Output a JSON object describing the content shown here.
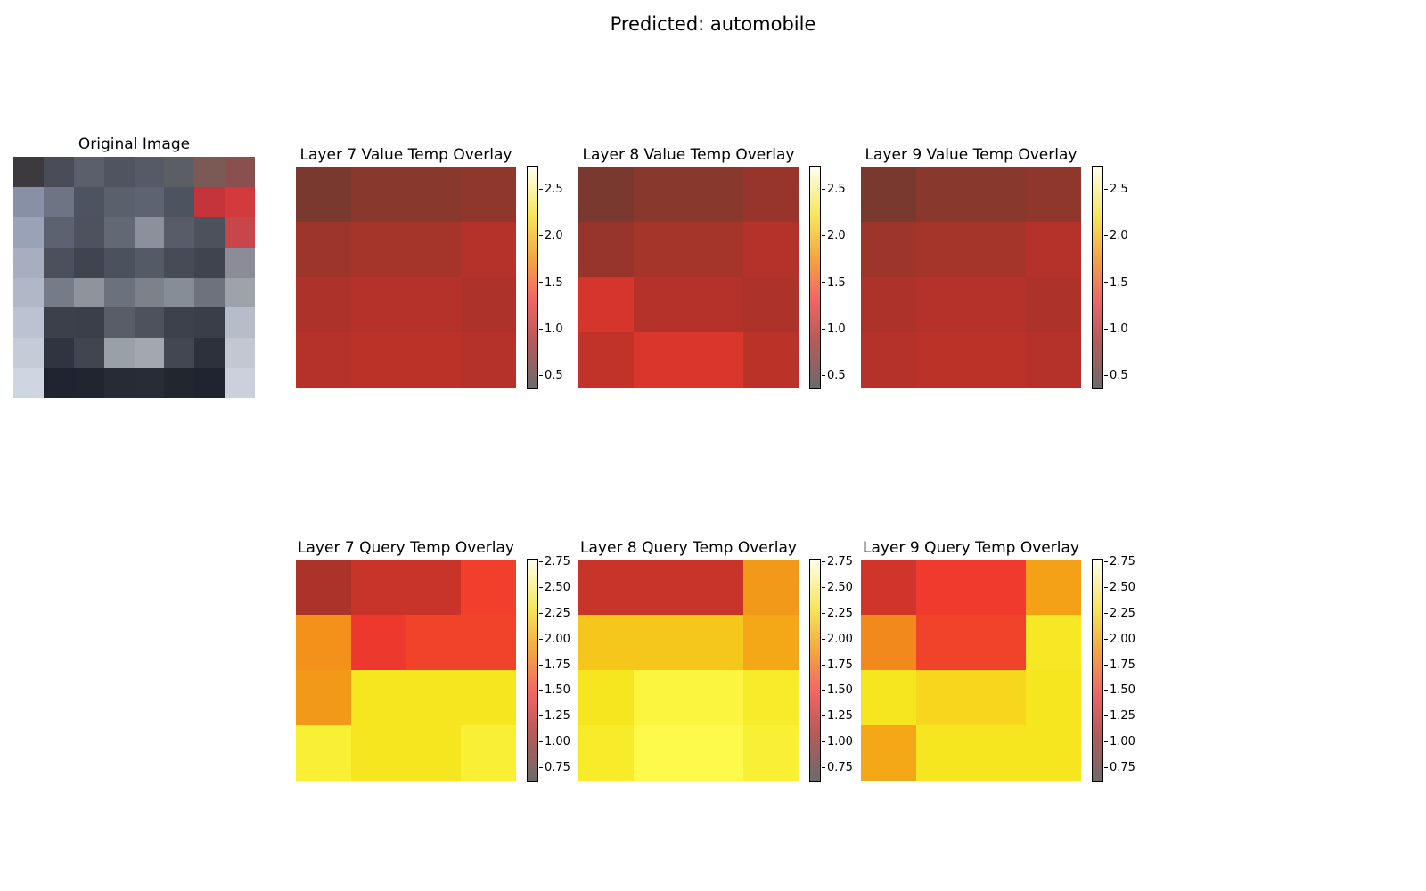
{
  "suptitle": "Predicted: automobile",
  "original_title": "Original Image",
  "original_pixels": [
    [
      "#3d3a3f",
      "#4a4c57",
      "#5a5f6b",
      "#4f5460",
      "#555a66",
      "#5c5e66",
      "#7b5a55",
      "#8a5050"
    ],
    [
      "#8890a6",
      "#6f7485",
      "#4d535f",
      "#5a606c",
      "#5d6370",
      "#4e5360",
      "#c4343a",
      "#d23a3d"
    ],
    [
      "#9aa2b8",
      "#5c626f",
      "#4d525e",
      "#636974",
      "#8b909a",
      "#575c68",
      "#4c515c",
      "#c8464a"
    ],
    [
      "#a6aec0",
      "#4b505c",
      "#3f444f",
      "#4c525d",
      "#555b66",
      "#464b56",
      "#3f444f",
      "#8c8c98"
    ],
    [
      "#b0b8c8",
      "#767c87",
      "#8f949c",
      "#6c727d",
      "#7c818a",
      "#878d96",
      "#6d727c",
      "#9da2ab"
    ],
    [
      "#bcc2d2",
      "#3b404a",
      "#3a3f49",
      "#585d67",
      "#4d525c",
      "#3c414b",
      "#393e48",
      "#b6bcc8"
    ],
    [
      "#c6cbd8",
      "#2f3440",
      "#404550",
      "#9aa0a8",
      "#a3a8b0",
      "#424751",
      "#2c313c",
      "#c2c7d2"
    ],
    [
      "#d0d5e2",
      "#1f2430",
      "#202530",
      "#262b36",
      "#272c37",
      "#21262f",
      "#1f2430",
      "#cbd0dc"
    ]
  ],
  "chart_data": [
    {
      "type": "heatmap",
      "title": "Layer 7 Value Temp Overlay",
      "colorbar_ticks": [
        "0.5",
        "1.0",
        "1.5",
        "2.0",
        "2.5"
      ],
      "colorbar_range": [
        0.35,
        2.75
      ],
      "values": [
        [
          0.45,
          0.55,
          0.55,
          0.6
        ],
        [
          0.7,
          0.75,
          0.75,
          0.85
        ],
        [
          0.8,
          0.85,
          0.85,
          0.8
        ],
        [
          0.85,
          0.9,
          0.9,
          0.85
        ]
      ]
    },
    {
      "type": "heatmap",
      "title": "Layer 8 Value Temp Overlay",
      "colorbar_ticks": [
        "0.5",
        "1.0",
        "1.5",
        "2.0",
        "2.5"
      ],
      "colorbar_range": [
        0.35,
        2.75
      ],
      "values": [
        [
          0.45,
          0.55,
          0.55,
          0.65
        ],
        [
          0.65,
          0.75,
          0.75,
          0.85
        ],
        [
          1.1,
          0.85,
          0.85,
          0.8
        ],
        [
          0.95,
          1.15,
          1.15,
          0.9
        ]
      ]
    },
    {
      "type": "heatmap",
      "title": "Layer 9 Value Temp Overlay",
      "colorbar_ticks": [
        "0.5",
        "1.0",
        "1.5",
        "2.0",
        "2.5"
      ],
      "colorbar_range": [
        0.35,
        2.75
      ],
      "values": [
        [
          0.45,
          0.55,
          0.55,
          0.6
        ],
        [
          0.7,
          0.75,
          0.75,
          0.85
        ],
        [
          0.8,
          0.85,
          0.85,
          0.8
        ],
        [
          0.85,
          0.9,
          0.9,
          0.85
        ]
      ]
    },
    {
      "type": "heatmap",
      "title": "Layer 7 Query Temp Overlay",
      "colorbar_ticks": [
        "0.75",
        "1.00",
        "1.25",
        "1.50",
        "1.75",
        "2.00",
        "2.25",
        "2.50",
        "2.75"
      ],
      "colorbar_range": [
        0.6,
        2.78
      ],
      "values": [
        [
          1.0,
          1.2,
          1.2,
          1.55
        ],
        [
          1.75,
          1.45,
          1.6,
          1.6
        ],
        [
          1.8,
          2.3,
          2.3,
          2.3
        ],
        [
          2.5,
          2.3,
          2.3,
          2.5
        ]
      ]
    },
    {
      "type": "heatmap",
      "title": "Layer 8 Query Temp Overlay",
      "colorbar_ticks": [
        "0.75",
        "1.00",
        "1.25",
        "1.50",
        "1.75",
        "2.00",
        "2.25",
        "2.50",
        "2.75"
      ],
      "colorbar_range": [
        0.6,
        2.78
      ],
      "values": [
        [
          1.2,
          1.2,
          1.2,
          1.8
        ],
        [
          2.1,
          2.1,
          2.1,
          1.9
        ],
        [
          2.3,
          2.6,
          2.6,
          2.4
        ],
        [
          2.4,
          2.7,
          2.7,
          2.5
        ]
      ]
    },
    {
      "type": "heatmap",
      "title": "Layer 9 Query Temp Overlay",
      "colorbar_ticks": [
        "0.75",
        "1.00",
        "1.25",
        "1.50",
        "1.75",
        "2.00",
        "2.25",
        "2.50",
        "2.75"
      ],
      "colorbar_range": [
        0.6,
        2.78
      ],
      "values": [
        [
          1.25,
          1.5,
          1.5,
          1.85
        ],
        [
          1.7,
          1.6,
          1.6,
          2.35
        ],
        [
          2.3,
          2.2,
          2.2,
          2.3
        ],
        [
          1.9,
          2.3,
          2.3,
          2.3
        ]
      ]
    }
  ]
}
